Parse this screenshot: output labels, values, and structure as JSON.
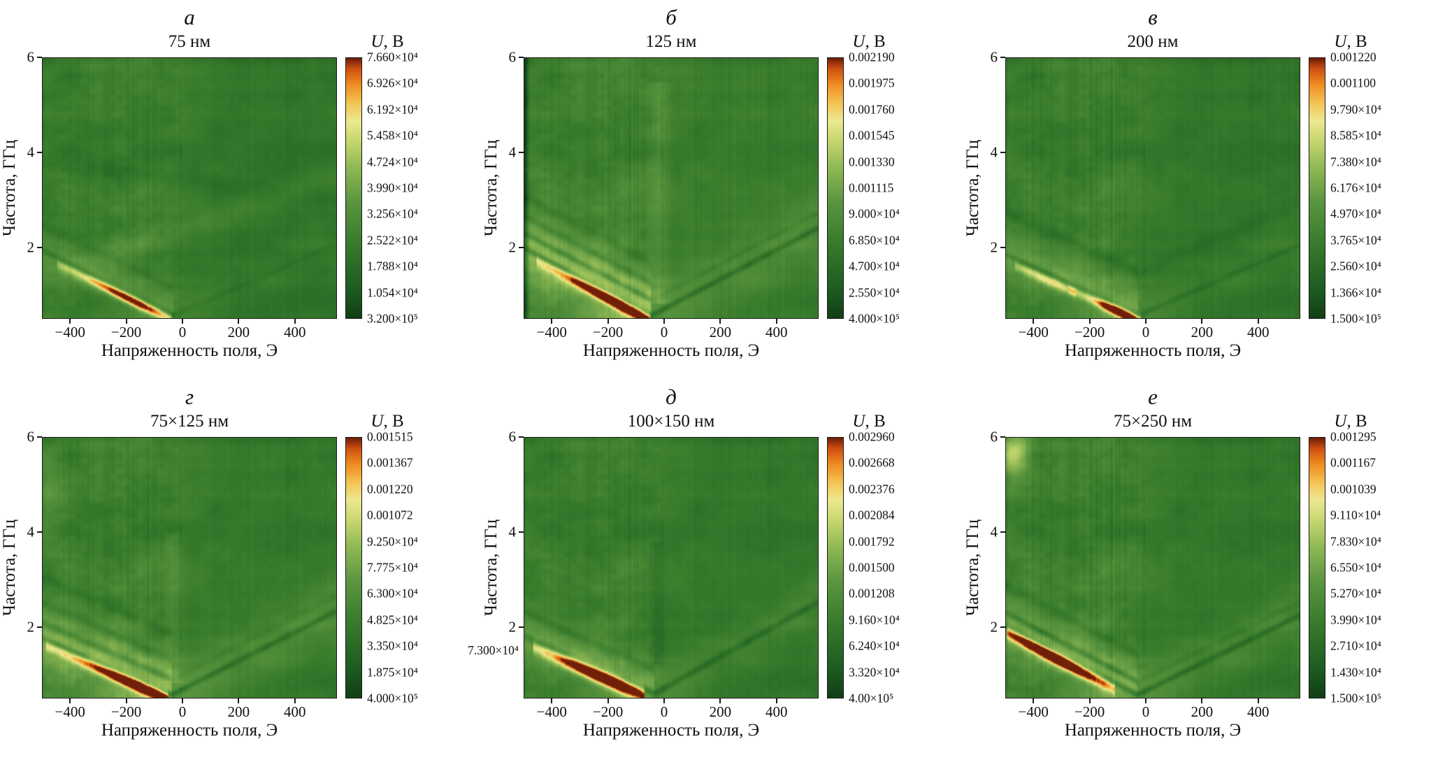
{
  "figure": {
    "background": "#ffffff",
    "axis_color": "#1a1a1a",
    "colormap_stops": [
      {
        "v": 0.0,
        "c": "#123f16"
      },
      {
        "v": 0.1,
        "c": "#1c5a20"
      },
      {
        "v": 0.3,
        "c": "#3a7d2d"
      },
      {
        "v": 0.45,
        "c": "#5c9640"
      },
      {
        "v": 0.58,
        "c": "#8fb955"
      },
      {
        "v": 0.68,
        "c": "#c6d66e"
      },
      {
        "v": 0.76,
        "c": "#ece990"
      },
      {
        "v": 0.83,
        "c": "#f4c353"
      },
      {
        "v": 0.9,
        "c": "#ee8c22"
      },
      {
        "v": 0.96,
        "c": "#cf5012"
      },
      {
        "v": 1.0,
        "c": "#701f08"
      }
    ]
  },
  "stray_label": {
    "text": "7.300×10⁴",
    "panel_index": 4
  },
  "chart_data": [
    {
      "type": "heatmap",
      "panel_letter": "а",
      "title": "75 нм",
      "colorbar_title_var": "U",
      "colorbar_title_rest": ", В",
      "xlabel": "Напряженность поля, Э",
      "ylabel": "Частота, ГГц",
      "x_range": [
        -500,
        550
      ],
      "y_range_ghz": [
        0.5,
        6
      ],
      "x_ticks": [
        -400,
        -200,
        0,
        200,
        400
      ],
      "x_tick_labels": [
        "−400",
        "−200",
        "0",
        "200",
        "400"
      ],
      "y_ticks": [
        6,
        4,
        2
      ],
      "y_tick_labels": [
        "6",
        "4",
        "2"
      ],
      "colorbar_ticks": [
        "7.660×10⁴",
        "6.926×10⁴",
        "6.192×10⁴",
        "5.458×10⁴",
        "4.724×10⁴",
        "3.990×10⁴",
        "3.256×10⁴",
        "2.522×10⁴",
        "1.788×10⁴",
        "1.054×10⁴",
        "3.200×10⁵"
      ],
      "content_summary": "Mostly uniform green map; bright orange-red streak at lower left along a dark resonance line descending to a minimum near zero field; faint lighter diagonal band rising to the right.",
      "render": {
        "base": 0.3,
        "blotch": 0.1,
        "stripeL": 0.1,
        "stripeR": 0.05,
        "rightDark": 0.05,
        "disp": {
          "Hv": -30,
          "f0": 0.55,
          "sL": 0.0029,
          "sR": 0.0026
        },
        "features": [
          {
            "t": "halo",
            "aL": 0.13,
            "aR": 0.03,
            "w": 0.45
          },
          {
            "t": "branch",
            "df": 0,
            "dL": 0.2,
            "dR": 0.05,
            "w": 0.07
          },
          {
            "t": "branch",
            "df": 0.55,
            "dL": 0.07,
            "dR": 0.0,
            "w": 0.12
          },
          {
            "t": "streak",
            "off": 0.12,
            "w": 0.11,
            "h0": -450,
            "h1": -40,
            "peak": -190,
            "sig": 140,
            "amp": 0.75
          },
          {
            "t": "diag",
            "fL": 1.35,
            "fR": 3.45,
            "amp": 0.07,
            "w": 0.3
          },
          {
            "t": "diag",
            "fL": 3.8,
            "fR": 3.0,
            "amp": -0.05,
            "w": 0.25
          }
        ]
      }
    },
    {
      "type": "heatmap",
      "panel_letter": "б",
      "title": "125 нм",
      "colorbar_title_var": "U",
      "colorbar_title_rest": ", В",
      "xlabel": "Напряженность поля, Э",
      "ylabel": "Частота, ГГц",
      "x_range": [
        -500,
        550
      ],
      "y_range_ghz": [
        0.5,
        6
      ],
      "x_ticks": [
        -400,
        -200,
        0,
        200,
        400
      ],
      "x_tick_labels": [
        "−400",
        "−200",
        "0",
        "200",
        "400"
      ],
      "y_ticks": [
        6,
        4,
        2
      ],
      "y_tick_labels": [
        "6",
        "4",
        "2"
      ],
      "colorbar_ticks": [
        "0.002190",
        "0.001975",
        "0.001760",
        "0.001545",
        "0.001330",
        "0.001115",
        "9.000×10⁴",
        "6.850×10⁴",
        "4.700×10⁴",
        "2.550×10⁴",
        "4.000×10⁵"
      ],
      "content_summary": "Pronounced V-shaped set of dark dispersion branches with vertex near zero field; wide bright yellow-green wedge on the negative-field side; intense orange-red spot at lower left; dark column at the left edge.",
      "render": {
        "base": 0.32,
        "blotch": 0.1,
        "stripeL": 0.12,
        "stripeR": 0.08,
        "rightDark": 0.03,
        "disp": {
          "Hv": -45,
          "f0": 0.55,
          "sL": 0.0031,
          "sR": 0.0031
        },
        "features": [
          {
            "t": "halo",
            "aL": 0.28,
            "aR": 0.1,
            "w": 0.85
          },
          {
            "t": "branch",
            "df": 0,
            "dL": 0.26,
            "dR": 0.2,
            "w": 0.07
          },
          {
            "t": "branch",
            "df": 0.32,
            "dL": 0.18,
            "dR": 0.06,
            "w": 0.07
          },
          {
            "t": "branch",
            "df": 0.68,
            "dL": 0.13,
            "dR": 0.0,
            "w": 0.09
          },
          {
            "t": "branch",
            "df": 1.1,
            "dL": 0.09,
            "dR": 0.0,
            "w": 0.12
          },
          {
            "t": "streak",
            "off": 0.13,
            "w": 0.12,
            "h0": -460,
            "h1": -50,
            "peak": -170,
            "sig": 150,
            "amp": 0.9
          },
          {
            "t": "edge",
            "amp": -0.3,
            "w": 12
          },
          {
            "t": "vshade",
            "H": -20,
            "w": 35,
            "amp": -0.08,
            "f0": 0.8,
            "f1": 5.5
          }
        ]
      }
    },
    {
      "type": "heatmap",
      "panel_letter": "в",
      "title": "200 нм",
      "colorbar_title_var": "U",
      "colorbar_title_rest": ", В",
      "xlabel": "Напряженность поля, Э",
      "ylabel": "Частота, ГГц",
      "x_range": [
        -500,
        550
      ],
      "y_range_ghz": [
        0.5,
        6
      ],
      "x_ticks": [
        -400,
        -200,
        0,
        200,
        400
      ],
      "x_tick_labels": [
        "−400",
        "−200",
        "0",
        "200",
        "400"
      ],
      "y_ticks": [
        6,
        4,
        2
      ],
      "y_tick_labels": [
        "6",
        "4",
        "2"
      ],
      "colorbar_ticks": [
        "0.001220",
        "0.001100",
        "9.790×10⁴",
        "8.585×10⁴",
        "7.380×10⁴",
        "6.176×10⁴",
        "4.970×10⁴",
        "3.765×10⁴",
        "2.560×10⁴",
        "1.366×10⁴",
        "1.500×10⁵"
      ],
      "content_summary": "Green map with vertical striations at upper left; light band at 1–2 GHz on the negative-field side; compact orange-red spot near −100 Э at low frequency; dark line descending to a vertex near zero field.",
      "render": {
        "base": 0.3,
        "blotch": 0.1,
        "stripeL": 0.13,
        "stripeR": 0.06,
        "rightDark": 0.05,
        "disp": {
          "Hv": -25,
          "f0": 0.55,
          "sL": 0.0027,
          "sR": 0.0026
        },
        "features": [
          {
            "t": "halo",
            "aL": 0.2,
            "aR": 0.05,
            "w": 0.55
          },
          {
            "t": "branch",
            "df": 0,
            "dL": 0.22,
            "dR": 0.09,
            "w": 0.07
          },
          {
            "t": "branch",
            "df": 0.9,
            "dL": 0.1,
            "dR": 0.04,
            "w": 0.14
          },
          {
            "t": "streak",
            "off": 0.12,
            "w": 0.11,
            "h0": -280,
            "h1": -20,
            "peak": -90,
            "sig": 80,
            "amp": 0.95
          },
          {
            "t": "streak",
            "off": 0.14,
            "w": 0.1,
            "h0": -470,
            "h1": -250,
            "peak": -350,
            "sig": 120,
            "amp": 0.3
          }
        ]
      }
    },
    {
      "type": "heatmap",
      "panel_letter": "г",
      "title": "75×125 нм",
      "colorbar_title_var": "U",
      "colorbar_title_rest": ", В",
      "xlabel": "Напряженность поля, Э",
      "ylabel": "Частота, ГГц",
      "x_range": [
        -500,
        550
      ],
      "y_range_ghz": [
        0.5,
        6
      ],
      "x_ticks": [
        -400,
        -200,
        0,
        200,
        400
      ],
      "x_tick_labels": [
        "−400",
        "−200",
        "0",
        "200",
        "400"
      ],
      "y_ticks": [
        6,
        4,
        2
      ],
      "y_tick_labels": [
        "6",
        "4",
        "2"
      ],
      "colorbar_ticks": [
        "0.001515",
        "0.001367",
        "0.001220",
        "0.001072",
        "9.250×10⁴",
        "7.775×10⁴",
        "6.300×10⁴",
        "4.825×10⁴",
        "3.350×10⁴",
        "1.875×10⁴",
        "4.000×10⁵"
      ],
      "content_summary": "Strong V-shaped dispersion with several dark branches; long bright orange-red streak from the left edge to the vertex; broad light halo around the V extending to positive fields.",
      "render": {
        "base": 0.31,
        "blotch": 0.11,
        "stripeL": 0.11,
        "stripeR": 0.06,
        "rightDark": 0.04,
        "disp": {
          "Hv": -40,
          "f0": 0.55,
          "sL": 0.0026,
          "sR": 0.003
        },
        "features": [
          {
            "t": "halo",
            "aL": 0.26,
            "aR": 0.12,
            "w": 0.8
          },
          {
            "t": "branch",
            "df": 0,
            "dL": 0.25,
            "dR": 0.19,
            "w": 0.07
          },
          {
            "t": "branch",
            "df": 0.33,
            "dL": 0.16,
            "dR": 0.05,
            "w": 0.08
          },
          {
            "t": "branch",
            "df": 0.75,
            "dL": 0.12,
            "dR": 0.0,
            "w": 0.11
          },
          {
            "t": "branch",
            "df": 1.3,
            "dL": 0.08,
            "dR": 0.0,
            "w": 0.14
          },
          {
            "t": "streak",
            "off": 0.12,
            "w": 0.12,
            "h0": -490,
            "h1": -50,
            "peak": -160,
            "sig": 150,
            "amp": 1.0
          },
          {
            "t": "glow",
            "H": -480,
            "f": 4.9,
            "sH": 70,
            "sF": 0.8,
            "amp": 0.12
          },
          {
            "t": "vshade",
            "H": -30,
            "w": 30,
            "amp": -0.06,
            "f0": 0.8,
            "f1": 4.0
          }
        ]
      }
    },
    {
      "type": "heatmap",
      "panel_letter": "д",
      "title": "100×150 нм",
      "colorbar_title_var": "U",
      "colorbar_title_rest": ", В",
      "xlabel": "Напряженность поля, Э",
      "ylabel": "Частота, ГГц",
      "x_range": [
        -500,
        550
      ],
      "y_range_ghz": [
        0.5,
        6
      ],
      "x_ticks": [
        -400,
        -200,
        0,
        200,
        400
      ],
      "x_tick_labels": [
        "−400",
        "−200",
        "0",
        "200",
        "400"
      ],
      "y_ticks": [
        6,
        4,
        2
      ],
      "y_tick_labels": [
        "6",
        "4",
        "2"
      ],
      "colorbar_ticks": [
        "0.002960",
        "0.002668",
        "0.002376",
        "0.002084",
        "0.001792",
        "0.001500",
        "0.001208",
        "9.160×10⁴",
        "6.240×10⁴",
        "3.320×10⁴",
        "4.00×10⁵"
      ],
      "content_summary": "Thick bright orange-red streak at lower left below a dark descending line; dark branch rising to the right from a vertex near zero field; faint dark vertical smudge above the vertex.",
      "render": {
        "base": 0.3,
        "blotch": 0.1,
        "stripeL": 0.1,
        "stripeR": 0.06,
        "rightDark": 0.04,
        "disp": {
          "Hv": -35,
          "f0": 0.58,
          "sL": 0.0026,
          "sR": 0.0033
        },
        "features": [
          {
            "t": "halo",
            "aL": 0.2,
            "aR": 0.08,
            "w": 0.6
          },
          {
            "t": "branch",
            "df": 0,
            "dL": 0.24,
            "dR": 0.17,
            "w": 0.08
          },
          {
            "t": "branch",
            "df": 0.5,
            "dL": 0.12,
            "dR": 0.0,
            "w": 0.1
          },
          {
            "t": "streak",
            "off": 0.14,
            "w": 0.15,
            "h0": -470,
            "h1": -70,
            "peak": -210,
            "sig": 160,
            "amp": 1.0
          },
          {
            "t": "vshade",
            "H": -25,
            "w": 28,
            "amp": 0.07,
            "f0": 1.2,
            "f1": 3.8
          }
        ]
      }
    },
    {
      "type": "heatmap",
      "panel_letter": "е",
      "title": "75×250 нм",
      "colorbar_title_var": "U",
      "colorbar_title_rest": ", В",
      "xlabel": "Напряженность поля, Э",
      "ylabel": "Частота, ГГц",
      "x_range": [
        -500,
        550
      ],
      "y_range_ghz": [
        0.5,
        6
      ],
      "x_ticks": [
        -400,
        -200,
        0,
        200,
        400
      ],
      "x_tick_labels": [
        "−400",
        "−200",
        "0",
        "200",
        "400"
      ],
      "y_ticks": [
        6,
        4,
        2
      ],
      "y_tick_labels": [
        "6",
        "4",
        "2"
      ],
      "colorbar_ticks": [
        "0.001295",
        "0.001167",
        "0.001039",
        "9.110×10⁴",
        "7.830×10⁴",
        "6.550×10⁴",
        "5.270×10⁴",
        "3.990×10⁴",
        "2.710×10⁴",
        "1.430×10⁴",
        "1.500×10⁵"
      ],
      "content_summary": "Two closely spaced dark lines descending from the left edge with a bright red streak along them; warm glow at the top left corner; clear dark branch rising to the right of the vertex; strong vertical striations at upper left.",
      "render": {
        "base": 0.31,
        "blotch": 0.11,
        "stripeL": 0.14,
        "stripeR": 0.06,
        "rightDark": 0.05,
        "disp": {
          "Hv": -30,
          "f0": 0.55,
          "sL": 0.0031,
          "sR": 0.0029
        },
        "features": [
          {
            "t": "halo",
            "aL": 0.22,
            "aR": 0.1,
            "w": 0.7
          },
          {
            "t": "branch",
            "df": 0,
            "dL": 0.25,
            "dR": 0.19,
            "w": 0.07
          },
          {
            "t": "branch",
            "df": 0.28,
            "dL": 0.2,
            "dR": 0.05,
            "w": 0.07
          },
          {
            "t": "branch",
            "df": 0.85,
            "dL": 0.1,
            "dR": 0.0,
            "w": 0.12
          },
          {
            "t": "streak",
            "off": 0.13,
            "w": 0.13,
            "h0": -500,
            "h1": -110,
            "peak": -330,
            "sig": 160,
            "amp": 1.0
          },
          {
            "t": "glow",
            "H": -470,
            "f": 5.7,
            "sH": 60,
            "sF": 0.6,
            "amp": 0.35
          }
        ]
      }
    }
  ]
}
